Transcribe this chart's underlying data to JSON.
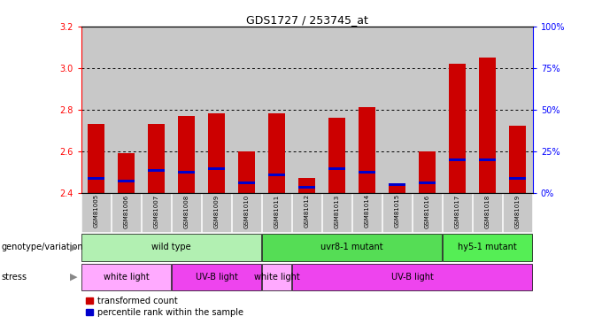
{
  "title": "GDS1727 / 253745_at",
  "samples": [
    "GSM81005",
    "GSM81006",
    "GSM81007",
    "GSM81008",
    "GSM81009",
    "GSM81010",
    "GSM81011",
    "GSM81012",
    "GSM81013",
    "GSM81014",
    "GSM81015",
    "GSM81016",
    "GSM81017",
    "GSM81018",
    "GSM81019"
  ],
  "red_values": [
    2.73,
    2.59,
    2.73,
    2.77,
    2.78,
    2.6,
    2.78,
    2.47,
    2.76,
    2.81,
    2.43,
    2.6,
    3.02,
    3.05,
    2.72
  ],
  "blue_values": [
    2.46,
    2.45,
    2.5,
    2.49,
    2.51,
    2.44,
    2.48,
    2.42,
    2.51,
    2.49,
    2.43,
    2.44,
    2.55,
    2.55,
    2.46
  ],
  "y_min": 2.4,
  "y_max": 3.2,
  "y_ticks": [
    2.4,
    2.6,
    2.8,
    3.0,
    3.2
  ],
  "y2_ticks": [
    0,
    25,
    50,
    75,
    100
  ],
  "y2_labels": [
    "0%",
    "25%",
    "50%",
    "75%",
    "100%"
  ],
  "genotype_groups": [
    {
      "label": "wild type",
      "start": 0,
      "end": 6,
      "color": "#b2f0b2"
    },
    {
      "label": "uvr8-1 mutant",
      "start": 6,
      "end": 12,
      "color": "#55dd55"
    },
    {
      "label": "hy5-1 mutant",
      "start": 12,
      "end": 15,
      "color": "#55ee55"
    }
  ],
  "stress_groups": [
    {
      "label": "white light",
      "start": 0,
      "end": 3,
      "color": "#ffaaff"
    },
    {
      "label": "UV-B light",
      "start": 3,
      "end": 6,
      "color": "#ee44ee"
    },
    {
      "label": "white light",
      "start": 6,
      "end": 7,
      "color": "#ffaaff"
    },
    {
      "label": "UV-B light",
      "start": 7,
      "end": 15,
      "color": "#ee44ee"
    }
  ],
  "bar_color": "#cc0000",
  "blue_color": "#0000cc",
  "col_bg": "#c8c8c8",
  "plot_bg": "#ffffff",
  "legend_red": "transformed count",
  "legend_blue": "percentile rank within the sample",
  "bar_width": 0.55
}
